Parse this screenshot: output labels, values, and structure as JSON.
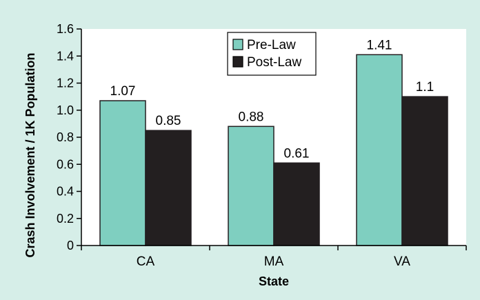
{
  "chart_data": {
    "type": "bar",
    "categories": [
      "CA",
      "MA",
      "VA"
    ],
    "series": [
      {
        "name": "Pre-Law",
        "values": [
          1.07,
          0.88,
          1.41
        ],
        "labels": [
          "1.07",
          "0.88",
          "1.41"
        ],
        "color": "#7fcfc0"
      },
      {
        "name": "Post-Law",
        "values": [
          0.85,
          0.61,
          1.1
        ],
        "labels": [
          "0.85",
          "0.61",
          "1.1"
        ],
        "color": "#231f20"
      }
    ],
    "xlabel": "State",
    "ylabel": "Crash Involvement / 1K Population",
    "ylim": [
      0,
      1.6
    ],
    "yticks": [
      "0",
      "0.2",
      "0.4",
      "0.6",
      "0.8",
      "1.0",
      "1.2",
      "1.4",
      "1.6"
    ],
    "grid": false,
    "legend_position": "top-center",
    "background_color": "#d6eee8",
    "plot_background_color": "#ffffff"
  }
}
